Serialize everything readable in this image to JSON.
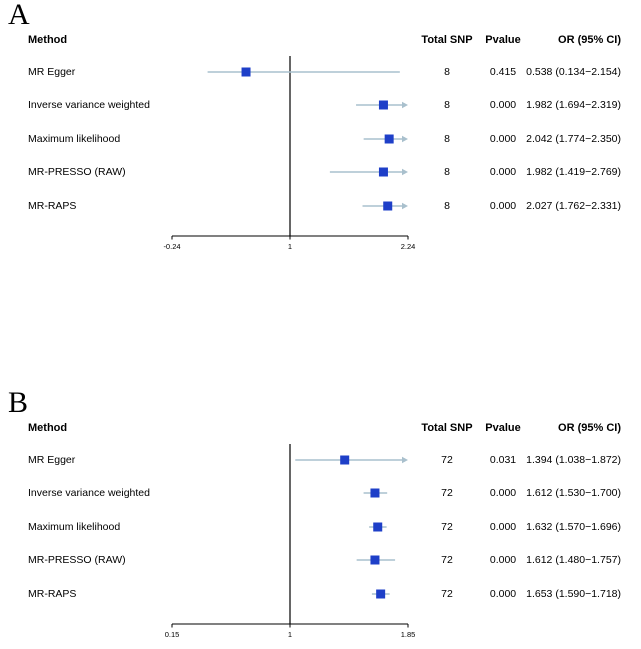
{
  "figure": {
    "panels": [
      {
        "label": "A",
        "headers": {
          "method": "Method",
          "total_snp": "Total SNP",
          "pvalue": "Pvalue",
          "or_ci": "OR (95% CI)"
        },
        "rows": [
          {
            "method": "MR Egger",
            "total_snp": "8",
            "pvalue": "0.415",
            "or_ci": "0.538 (0.134−2.154)"
          },
          {
            "method": "Inverse variance weighted",
            "total_snp": "8",
            "pvalue": "0.000",
            "or_ci": "1.982 (1.694−2.319)"
          },
          {
            "method": "Maximum likelihood",
            "total_snp": "8",
            "pvalue": "0.000",
            "or_ci": "2.042 (1.774−2.350)"
          },
          {
            "method": "MR-PRESSO (RAW)",
            "total_snp": "8",
            "pvalue": "0.000",
            "or_ci": "1.982 (1.419−2.769)"
          },
          {
            "method": "MR-RAPS",
            "total_snp": "8",
            "pvalue": "0.000",
            "or_ci": "2.027 (1.762−2.331)"
          }
        ]
      },
      {
        "label": "B",
        "headers": {
          "method": "Method",
          "total_snp": "Total SNP",
          "pvalue": "Pvalue",
          "or_ci": "OR (95% CI)"
        },
        "rows": [
          {
            "method": "MR Egger",
            "total_snp": "72",
            "pvalue": "0.031",
            "or_ci": "1.394 (1.038−1.872)"
          },
          {
            "method": "Inverse variance weighted",
            "total_snp": "72",
            "pvalue": "0.000",
            "or_ci": "1.612 (1.530−1.700)"
          },
          {
            "method": "Maximum likelihood",
            "total_snp": "72",
            "pvalue": "0.000",
            "or_ci": "1.632 (1.570−1.696)"
          },
          {
            "method": "MR-PRESSO (RAW)",
            "total_snp": "72",
            "pvalue": "0.000",
            "or_ci": "1.612 (1.480−1.757)"
          },
          {
            "method": "MR-RAPS",
            "total_snp": "72",
            "pvalue": "0.000",
            "or_ci": "1.653 (1.590−1.718)"
          }
        ]
      }
    ]
  },
  "chart_data": [
    {
      "type": "scatter",
      "subtype": "forest-plot",
      "title": "",
      "categories": [
        "MR Egger",
        "Inverse variance weighted",
        "Maximum likelihood",
        "MR-PRESSO (RAW)",
        "MR-RAPS"
      ],
      "rows": [
        {
          "label": "MR Egger",
          "or": 0.538,
          "ci_low": 0.134,
          "ci_high": 2.154
        },
        {
          "label": "Inverse variance weighted",
          "or": 1.982,
          "ci_low": 1.694,
          "ci_high": 2.319
        },
        {
          "label": "Maximum likelihood",
          "or": 2.042,
          "ci_low": 1.774,
          "ci_high": 2.35
        },
        {
          "label": "MR-PRESSO (RAW)",
          "or": 1.982,
          "ci_low": 1.419,
          "ci_high": 2.769
        },
        {
          "label": "MR-RAPS",
          "or": 2.027,
          "ci_low": 1.762,
          "ci_high": 2.331
        }
      ],
      "xlim": [
        -0.24,
        2.24
      ],
      "x_ticks": [
        "-0.24",
        "1",
        "2.24"
      ],
      "refline": 1,
      "grid": false,
      "legend": false,
      "marker_color": "#1e3fc8",
      "ci_color": "#a9c0cd",
      "axis_color": "#000000"
    },
    {
      "type": "scatter",
      "subtype": "forest-plot",
      "title": "",
      "categories": [
        "MR Egger",
        "Inverse variance weighted",
        "Maximum likelihood",
        "MR-PRESSO (RAW)",
        "MR-RAPS"
      ],
      "rows": [
        {
          "label": "MR Egger",
          "or": 1.394,
          "ci_low": 1.038,
          "ci_high": 1.872
        },
        {
          "label": "Inverse variance weighted",
          "or": 1.612,
          "ci_low": 1.53,
          "ci_high": 1.7
        },
        {
          "label": "Maximum likelihood",
          "or": 1.632,
          "ci_low": 1.57,
          "ci_high": 1.696
        },
        {
          "label": "MR-PRESSO (RAW)",
          "or": 1.612,
          "ci_low": 1.48,
          "ci_high": 1.757
        },
        {
          "label": "MR-RAPS",
          "or": 1.653,
          "ci_low": 1.59,
          "ci_high": 1.718
        }
      ],
      "xlim": [
        0.15,
        1.85
      ],
      "x_ticks": [
        "0.15",
        "1",
        "1.85"
      ],
      "refline": 1,
      "grid": false,
      "legend": false,
      "marker_color": "#1e3fc8",
      "ci_color": "#a9c0cd",
      "axis_color": "#000000"
    }
  ]
}
